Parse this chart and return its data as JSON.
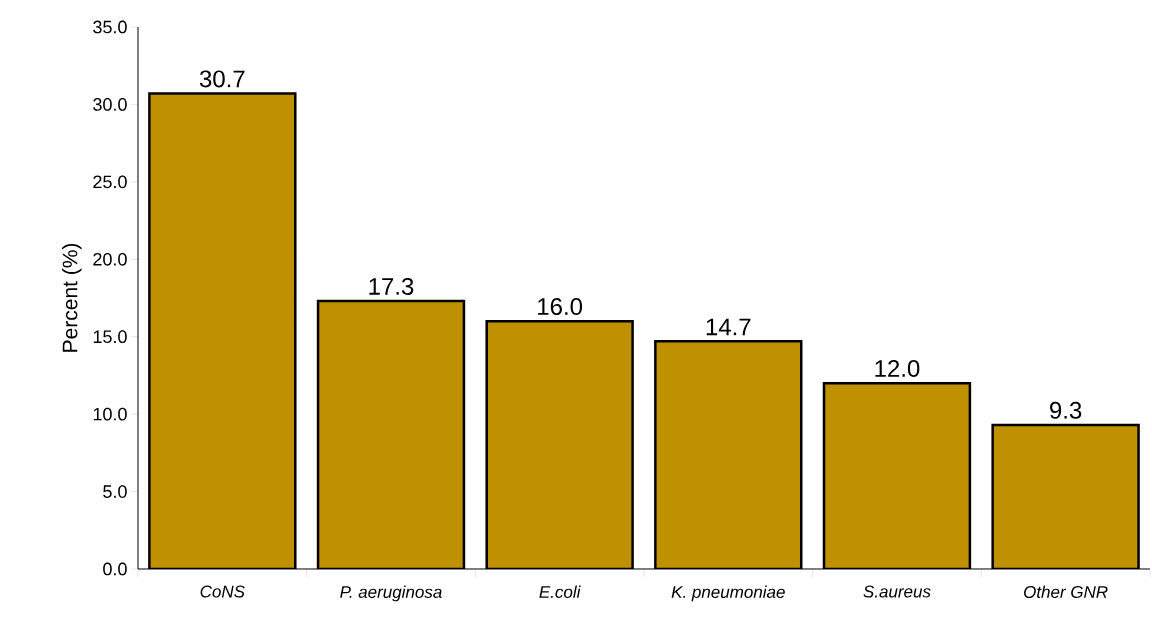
{
  "chart_data": {
    "type": "bar",
    "ylabel": "Percent (%)",
    "categories": [
      "CoNS",
      "P. aeruginosa",
      "E.coli",
      "K. pneumoniae",
      "S.aureus",
      "Other GNR"
    ],
    "values": [
      30.7,
      17.3,
      16.0,
      14.7,
      12.0,
      9.3
    ],
    "value_labels": [
      "30.7",
      "17.3",
      "16.0",
      "14.7",
      "12.0",
      "9.3"
    ],
    "color": "#bf9000",
    "ylim": [
      0,
      35
    ],
    "yticks": [
      {
        "value": 0,
        "label": "0.0"
      },
      {
        "value": 5,
        "label": "5.0"
      },
      {
        "value": 10,
        "label": "10.0"
      },
      {
        "value": 15,
        "label": "15.0"
      },
      {
        "value": 20,
        "label": "20.0"
      },
      {
        "value": 25,
        "label": "25.0"
      },
      {
        "value": 30,
        "label": "30.0"
      },
      {
        "value": 35,
        "label": "35.0"
      }
    ],
    "grid": false
  }
}
